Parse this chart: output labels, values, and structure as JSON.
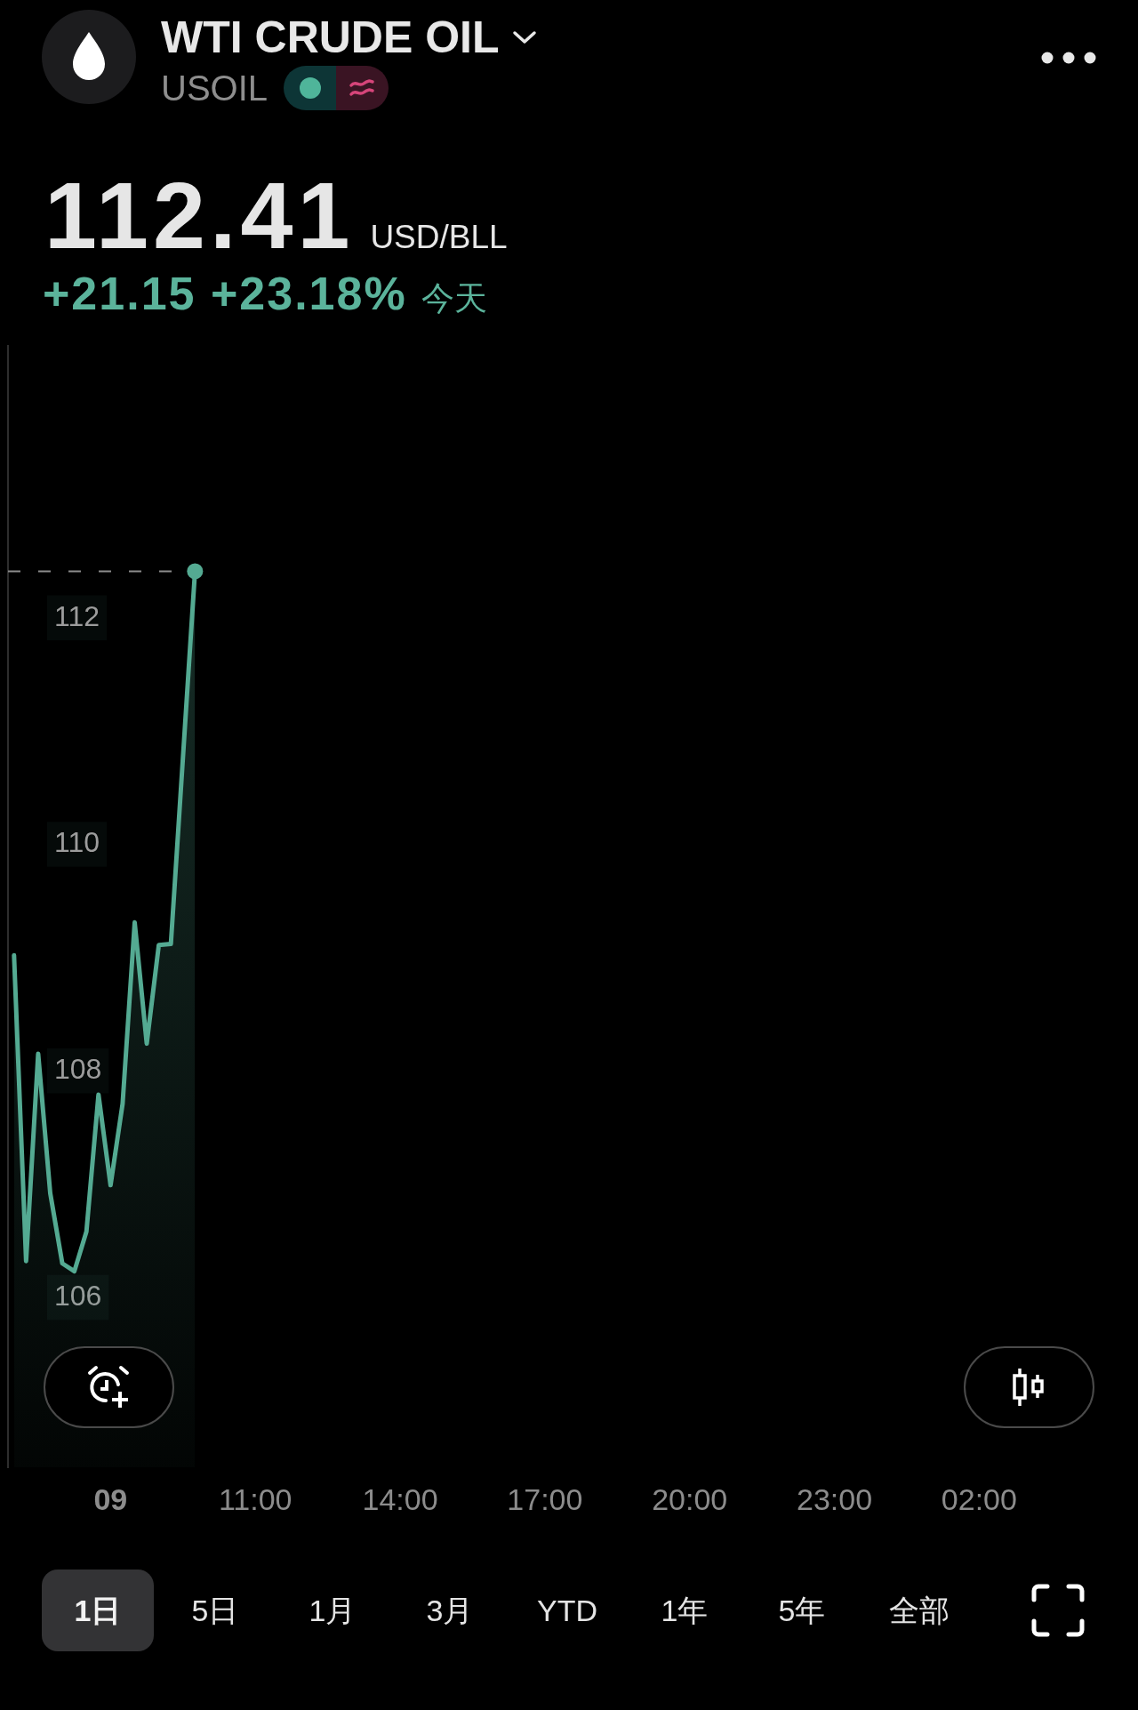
{
  "chart_data": {
    "type": "area",
    "title": "WTI CRUDE OIL",
    "subtitle": "USOIL",
    "annotations": [
      "112.41",
      "USD/BLL",
      "+21.15 +23.18%",
      "今天",
      "1日",
      "5日",
      "1月",
      "3月",
      "YTD",
      "1年",
      "5年",
      "全部"
    ],
    "categories": [
      null,
      null,
      null,
      null,
      null,
      null,
      null,
      null,
      "09",
      null,
      null,
      null,
      null,
      null,
      null,
      null,
      null,
      null,
      null,
      null,
      "11:00",
      null,
      null,
      null,
      null,
      null,
      null,
      null,
      null,
      null,
      null,
      null,
      "14:00",
      null,
      null,
      null,
      null,
      null,
      null,
      null,
      null,
      null,
      null,
      null,
      "17:00",
      null,
      null,
      null,
      null,
      null,
      null,
      null,
      null,
      null,
      null,
      null,
      "20:00",
      null,
      null,
      null,
      null,
      null,
      null,
      null,
      null,
      null,
      null,
      null,
      "23:00",
      null,
      null,
      null,
      null,
      null,
      null,
      null,
      null,
      null,
      null,
      null,
      "02:00",
      null,
      null,
      null,
      null,
      null,
      null,
      null,
      null,
      null,
      null,
      null,
      null
    ],
    "series": [
      {
        "color": "#54aa92",
        "values": [
          109.02,
          106.32,
          108.15,
          106.92,
          106.3,
          106.23,
          106.58,
          107.79,
          106.99,
          107.71,
          109.31,
          108.24,
          109.11,
          109.12,
          null,
          112.41,
          null,
          null,
          null,
          null,
          null,
          null,
          null,
          null,
          null,
          null,
          null,
          null,
          null,
          null,
          null,
          null,
          null,
          null,
          null,
          null,
          null,
          null,
          null,
          null,
          null,
          null,
          null,
          null,
          null,
          null,
          null,
          null,
          null,
          null,
          null,
          null,
          null,
          null,
          null,
          null,
          null,
          null,
          null,
          null,
          null,
          null,
          null,
          null,
          null,
          null,
          null,
          null,
          null,
          null,
          null,
          null,
          null,
          null,
          null,
          null,
          null,
          null,
          null,
          null,
          null,
          null,
          null,
          null,
          null,
          null,
          null,
          null,
          null,
          null,
          null,
          null,
          null
        ]
      },
      {
        "type": "scatter",
        "color": "#54aa92",
        "values": [
          null,
          null,
          null,
          null,
          null,
          null,
          null,
          null,
          null,
          null,
          null,
          null,
          null,
          null,
          null,
          112.41,
          null,
          null,
          null,
          null,
          null,
          null,
          null,
          null,
          null,
          null,
          null,
          null,
          null,
          null,
          null,
          null,
          null,
          null,
          null,
          null,
          null,
          null,
          null,
          null,
          null,
          null,
          null,
          null,
          null,
          null,
          null,
          null,
          null,
          null,
          null,
          null,
          null,
          null,
          null,
          null,
          null,
          null,
          null,
          null,
          null,
          null,
          null,
          null,
          null,
          null,
          null,
          null,
          null,
          null,
          null,
          null,
          null,
          null,
          null,
          null,
          null,
          null,
          null,
          null,
          null,
          null,
          null,
          null,
          null,
          null,
          null,
          null,
          null,
          null,
          null,
          null,
          null
        ]
      }
    ],
    "ylim": [
      104.5,
      114.4
    ],
    "yticks": [
      106,
      108,
      110,
      112
    ],
    "ref_lines": [
      {
        "axis": "y",
        "value": 112.41,
        "line_style": "dashed",
        "color": "#8c8c8c"
      }
    ]
  }
}
